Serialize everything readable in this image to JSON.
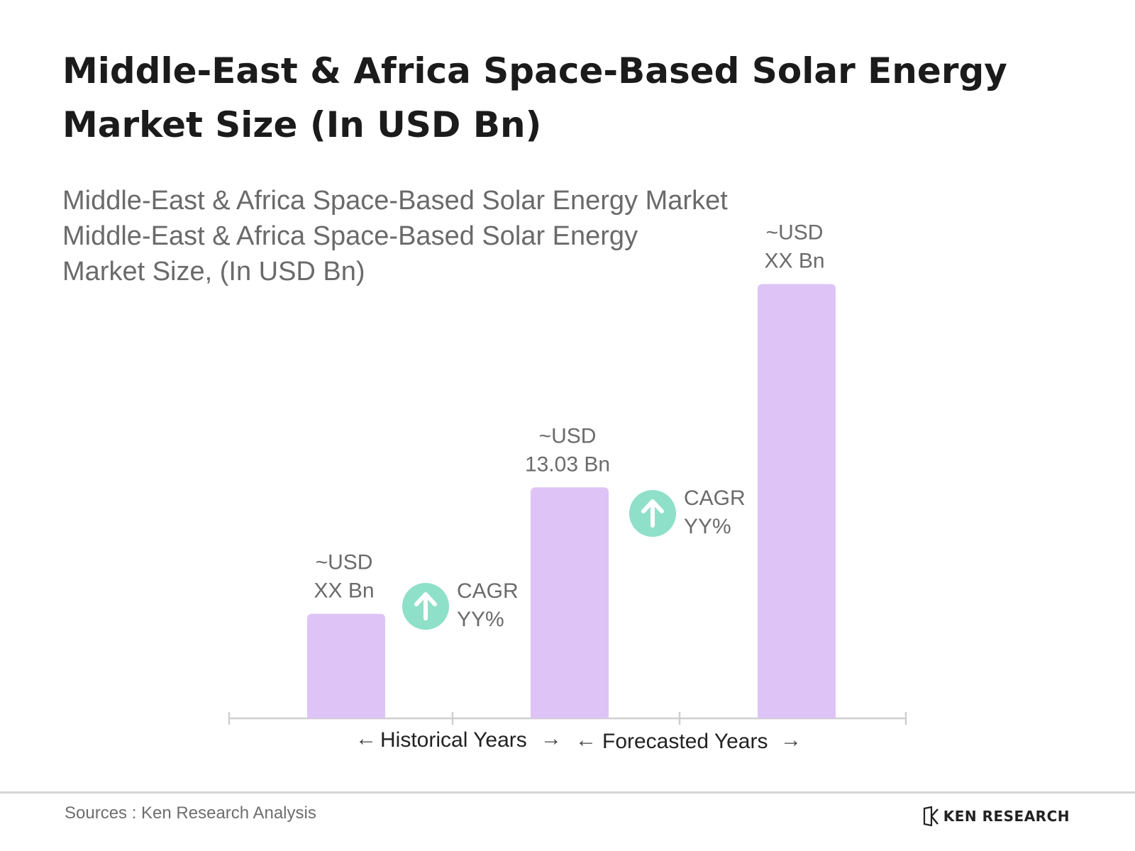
{
  "header": {
    "title": "Middle-East & Africa Space-Based Solar Energy Market Size (In USD Bn)"
  },
  "subtitle": {
    "line1": "Middle-East & Africa Space-Based Solar Energy Market",
    "line2": "Middle-East & Africa Space-Based Solar Energy",
    "line3": "Market Size, (In USD Bn)"
  },
  "colors": {
    "bar": "#dec4f6",
    "cagr_badge": "#8fe0c8",
    "axis": "#cfcfcf"
  },
  "chart_data": {
    "type": "bar",
    "categories": [
      "",
      "",
      ""
    ],
    "values": [
      5.9,
      13.03,
      24.5
    ],
    "value_labels": [
      [
        "~USD",
        "XX Bn"
      ],
      [
        "~USD",
        "13.03 Bn"
      ],
      [
        "~USD",
        "XX Bn"
      ]
    ],
    "ylim": [
      0,
      30
    ],
    "grid": false,
    "legend": "none",
    "annotations": [
      {
        "icon": "arrow-up-icon",
        "line1": "CAGR",
        "line2": "YY%",
        "between": [
          0,
          1
        ]
      },
      {
        "icon": "arrow-up-icon",
        "line1": "CAGR",
        "line2": "YY%",
        "between": [
          1,
          2
        ]
      }
    ],
    "periods": [
      {
        "label": "Historical Years",
        "left_arrow": "←",
        "right_arrow": "→"
      },
      {
        "label": "Forecasted Years",
        "left_arrow": "←",
        "right_arrow": "→"
      }
    ]
  },
  "footer": {
    "source": "Sources : Ken Research Analysis",
    "brand": "KEN RESEARCH"
  }
}
